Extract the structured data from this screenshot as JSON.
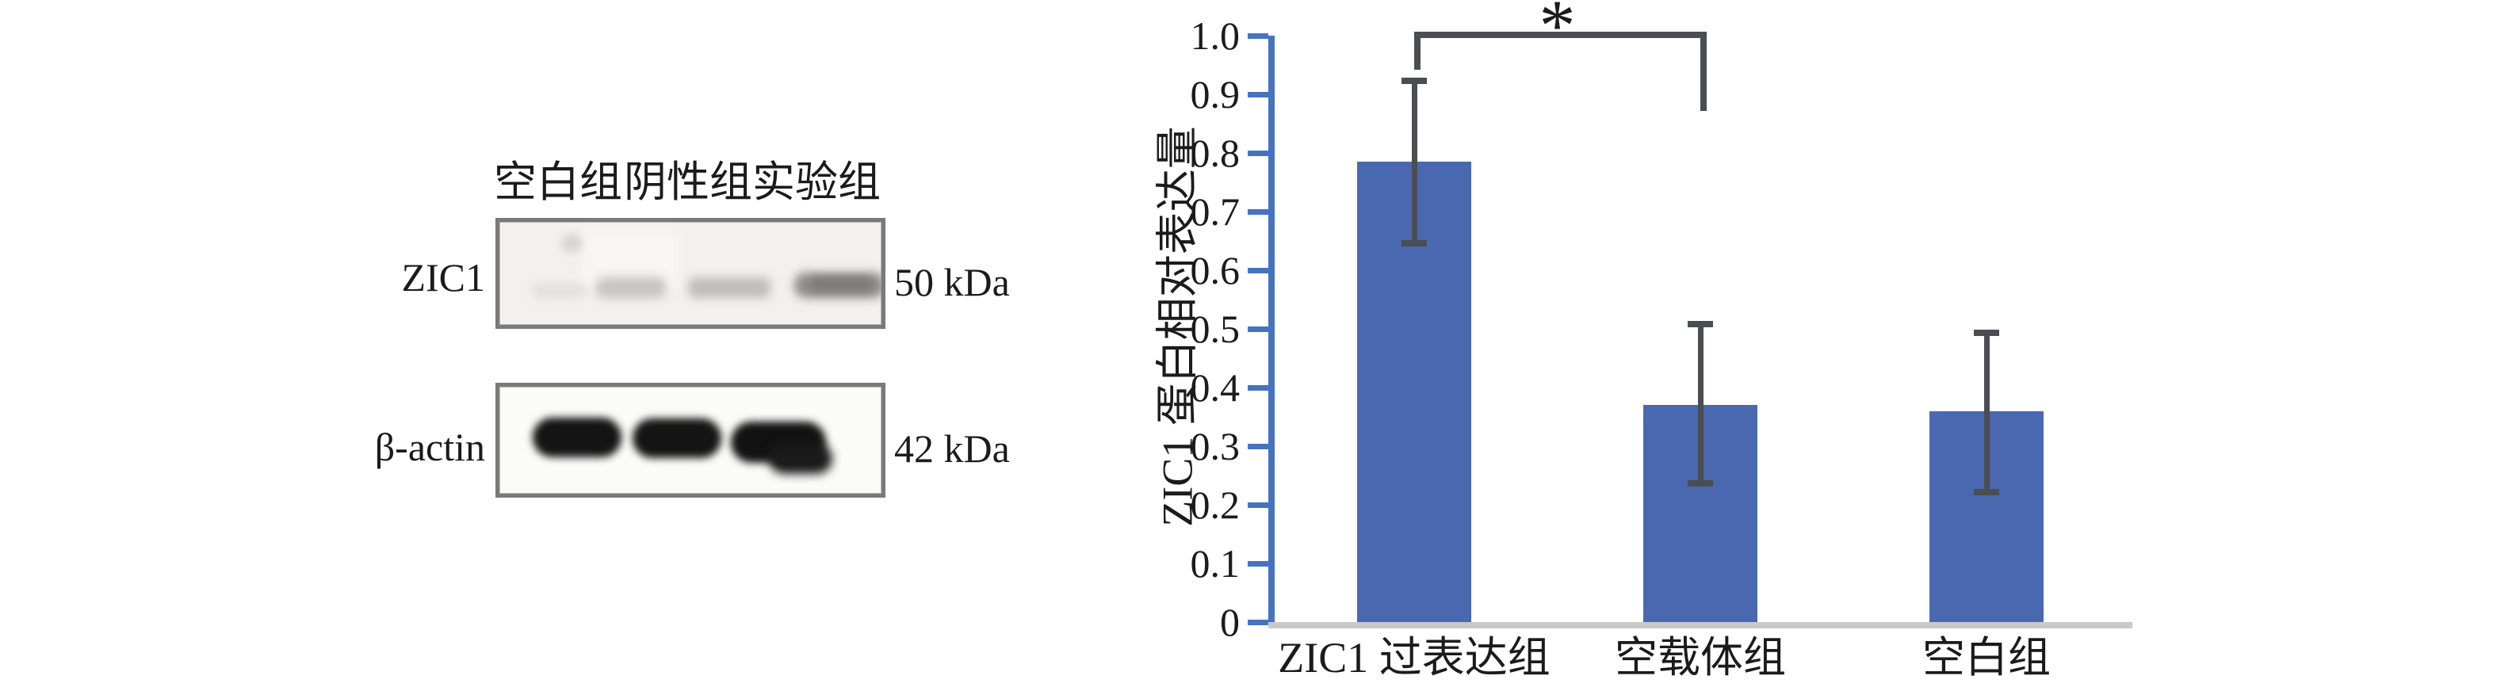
{
  "figure": {
    "background": "#ffffff",
    "text_color": "#1b1b1b"
  },
  "blot_panel": {
    "lane_labels": [
      "空白组",
      "阴性组",
      "实验组"
    ],
    "rows": [
      {
        "protein": "ZIC1",
        "weight": "50 kDa"
      },
      {
        "protein": "β-actin",
        "weight": "42 kDa"
      }
    ]
  },
  "chart_data": {
    "type": "bar",
    "title": "",
    "categories": [
      "ZIC1 过表达组",
      "空载体组",
      "空白组"
    ],
    "values": [
      0.785,
      0.37,
      0.36
    ],
    "error_high": [
      0.925,
      0.51,
      0.495
    ],
    "error_low": [
      0.645,
      0.235,
      0.22
    ],
    "ylabel": "ZIC1 蛋白相对表达量",
    "xlabel": "",
    "ylim": [
      0,
      1.0
    ],
    "ytick_step": 0.1,
    "ytick_labels": [
      "0",
      "0.1",
      "0.2",
      "0.3",
      "0.4",
      "0.5",
      "0.6",
      "0.7",
      "0.8",
      "0.9",
      "1.0"
    ],
    "grid": false,
    "legend": null,
    "bar_color": "#4a68b0",
    "axis_color": "#4573c0",
    "error_color": "#4a4e53",
    "baseline_color": "#c9c9c9",
    "significance": {
      "label": "*",
      "from": 0,
      "to": 1
    }
  }
}
